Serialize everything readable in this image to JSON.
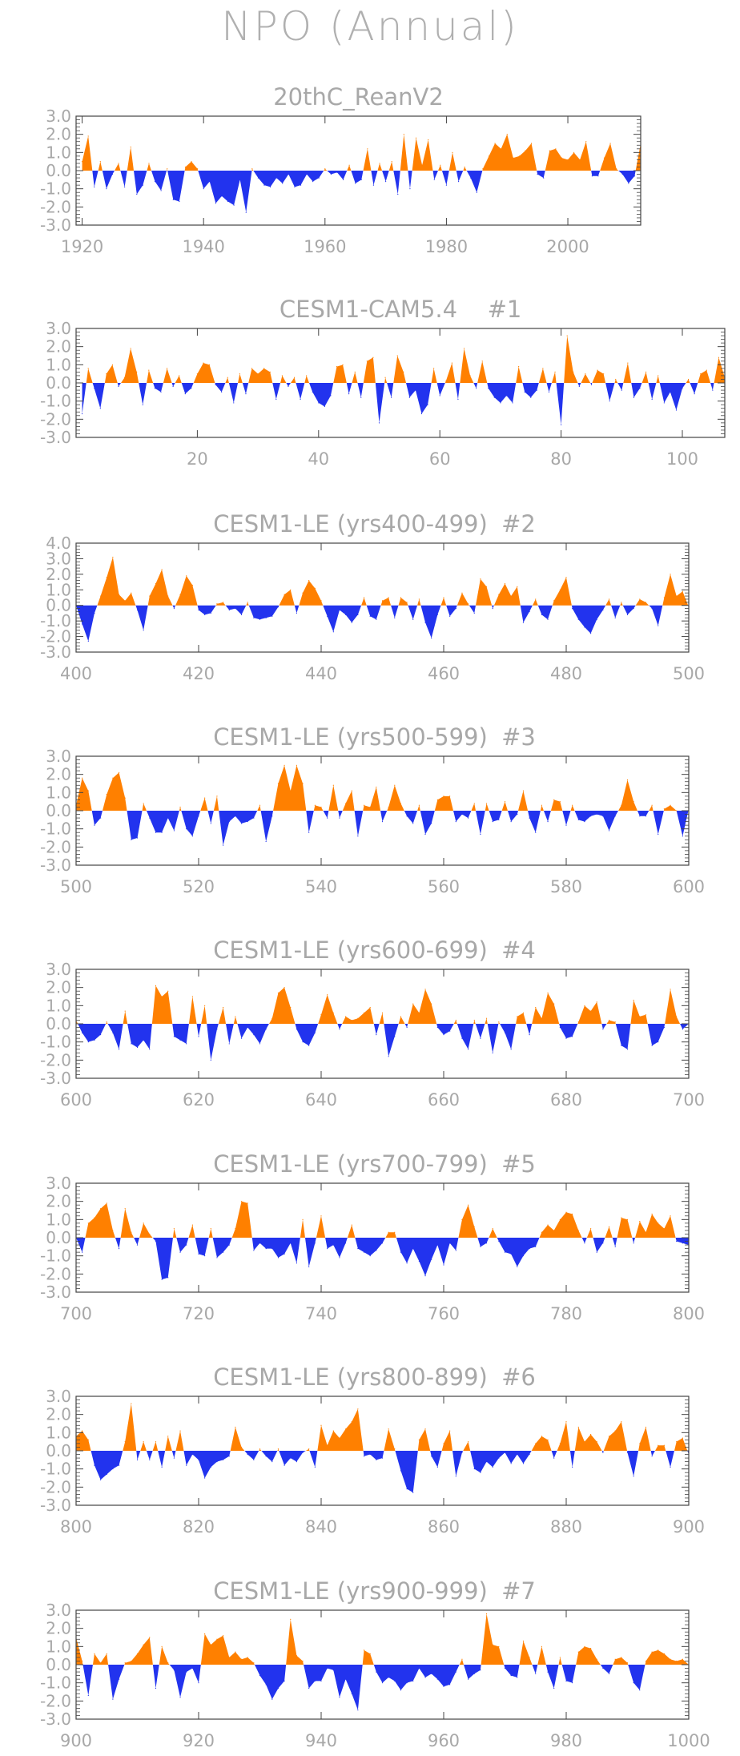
{
  "page": {
    "title": "NPO (Annual)"
  },
  "colors": {
    "positive": "#ff8000",
    "negative": "#2233ee",
    "axis": "#444444",
    "text": "#a8a8a8"
  },
  "chart_data": [
    {
      "type": "area",
      "title": "20thC_ReanV2",
      "label_suffix": "",
      "xlim": [
        1919,
        2012
      ],
      "ylim": [
        -3,
        3
      ],
      "yticks": [
        3.0,
        2.0,
        1.0,
        0.0,
        -1.0,
        -2.0,
        -3.0
      ],
      "ytick_labels": [
        "3.0",
        "2.0",
        "1.0",
        "0.0",
        "-1.0",
        "-2.0",
        "-3.0"
      ],
      "xticks": [
        1920,
        1940,
        1960,
        1980,
        2000
      ],
      "xtick_labels": [
        "1920",
        "1940",
        "1960",
        "1980",
        "2000"
      ],
      "x_start": 1920,
      "values": [
        0.5,
        1.9,
        -0.9,
        0.5,
        -1.0,
        -0.2,
        0.4,
        -0.9,
        1.3,
        -1.3,
        -0.8,
        0.4,
        -0.6,
        -1.1,
        0.1,
        -1.6,
        -1.7,
        0.2,
        0.5,
        0.1,
        -1.0,
        -0.6,
        -1.8,
        -1.4,
        -1.7,
        -1.9,
        -0.5,
        -2.3,
        0.1,
        -0.4,
        -0.8,
        -0.9,
        -0.4,
        -0.7,
        -0.2,
        -0.9,
        -0.8,
        -0.2,
        -0.6,
        -0.4,
        0.1,
        -0.2,
        -0.1,
        -0.5,
        0.3,
        -0.7,
        -0.5,
        1.2,
        -0.8,
        0.4,
        -0.6,
        0.5,
        -1.3,
        2.0,
        -1.0,
        1.8,
        0.3,
        1.7,
        -0.5,
        0.3,
        -0.8,
        1.0,
        -0.6,
        0.2,
        -0.4,
        -1.2,
        0.1,
        0.8,
        1.5,
        1.2,
        2.0,
        0.7,
        0.8,
        1.1,
        1.5,
        -0.2,
        -0.4,
        1.1,
        1.2,
        0.7,
        0.6,
        1.0,
        0.6,
        1.6,
        -0.3,
        -0.3,
        0.7,
        1.5,
        0.1,
        -0.2,
        -0.7,
        -0.3,
        1.5
      ]
    },
    {
      "type": "area",
      "title": "CESM1-CAM5.4",
      "label_suffix": "#1",
      "xlim": [
        0,
        107
      ],
      "ylim": [
        -3,
        3
      ],
      "yticks": [
        3.0,
        2.0,
        1.0,
        0.0,
        -1.0,
        -2.0,
        -3.0
      ],
      "ytick_labels": [
        "3.0",
        "2.0",
        "1.0",
        "0.0",
        "-1.0",
        "-2.0",
        "-3.0"
      ],
      "xticks": [
        20,
        40,
        60,
        80,
        100
      ],
      "xtick_labels": [
        "20",
        "40",
        "60",
        "80",
        "100"
      ],
      "x_start": 1,
      "values": [
        -1.7,
        0.8,
        -0.3,
        -1.4,
        0.5,
        1.0,
        -0.2,
        0.3,
        1.9,
        0.6,
        -1.2,
        0.7,
        -0.3,
        -0.5,
        0.8,
        -0.2,
        0.4,
        -0.6,
        -0.3,
        0.5,
        1.1,
        1.0,
        -0.1,
        -0.5,
        0.3,
        -1.1,
        0.5,
        -0.6,
        0.8,
        0.5,
        0.8,
        0.6,
        -0.9,
        0.4,
        -0.2,
        0.3,
        -0.9,
        0.4,
        -0.5,
        -1.1,
        -1.3,
        -0.7,
        0.9,
        1.0,
        -0.6,
        0.6,
        -0.8,
        1.2,
        1.4,
        -2.2,
        0.3,
        -0.8,
        1.5,
        0.6,
        -0.8,
        -0.4,
        -1.7,
        -1.2,
        0.8,
        -0.7,
        0.1,
        1.1,
        -0.9,
        1.9,
        0.4,
        -0.3,
        1.2,
        -0.3,
        -0.8,
        -1.1,
        -0.7,
        -1.1,
        0.9,
        -0.5,
        -0.8,
        -0.4,
        0.8,
        -0.5,
        0.6,
        -2.3,
        2.6,
        0.6,
        -0.2,
        0.5,
        -0.1,
        0.7,
        0.5,
        -1.0,
        0.2,
        -0.4,
        1.1,
        -0.8,
        -0.3,
        0.6,
        -0.9,
        0.4,
        -1.1,
        -0.5,
        -1.5,
        -0.3,
        0.2,
        -0.6,
        0.5,
        0.7,
        -0.4,
        1.4,
        0.3
      ]
    },
    {
      "type": "area",
      "title": "CESM1-LE (yrs400-499)",
      "label_suffix": "#2",
      "xlim": [
        400,
        500
      ],
      "ylim": [
        -3,
        4
      ],
      "yticks": [
        4.0,
        3.0,
        2.0,
        1.0,
        0.0,
        -1.0,
        -2.0,
        -3.0
      ],
      "ytick_labels": [
        "4.0",
        "3.0",
        "2.0",
        "1.0",
        "0.0",
        "-1.0",
        "-2.0",
        "-3.0"
      ],
      "xticks": [
        400,
        420,
        440,
        460,
        480,
        500
      ],
      "xtick_labels": [
        "400",
        "420",
        "440",
        "460",
        "480",
        "500"
      ],
      "x_start": 400,
      "values": [
        0.0,
        -1.2,
        -2.3,
        -0.5,
        0.6,
        1.8,
        3.1,
        0.7,
        0.3,
        0.8,
        -0.3,
        -1.6,
        0.6,
        1.4,
        2.3,
        0.6,
        -0.2,
        0.7,
        1.9,
        1.3,
        -0.3,
        -0.6,
        -0.5,
        0.1,
        0.2,
        -0.3,
        -0.2,
        -0.6,
        0.2,
        -0.8,
        -0.9,
        -0.8,
        -0.7,
        -0.1,
        0.7,
        1.0,
        -0.5,
        0.8,
        1.6,
        1.1,
        0.3,
        -0.7,
        -1.7,
        -0.3,
        -0.6,
        -1.1,
        -0.6,
        0.5,
        -0.7,
        -0.9,
        0.3,
        0.5,
        -0.8,
        0.5,
        0.2,
        -0.9,
        0.4,
        -1.1,
        -2.1,
        -0.6,
        0.5,
        -0.7,
        -0.2,
        0.8,
        0.1,
        -0.5,
        1.7,
        1.2,
        -0.2,
        0.7,
        1.4,
        0.6,
        1.2,
        -1.1,
        -0.4,
        0.4,
        -0.6,
        -0.9,
        0.3,
        1.0,
        1.8,
        -0.2,
        -0.9,
        -1.4,
        -1.8,
        -0.9,
        -0.3,
        0.4,
        -0.8,
        0.2,
        -0.6,
        -0.2,
        0.4,
        0.2,
        -0.2,
        -1.3,
        0.5,
        2.0,
        0.6,
        0.9,
        -0.1
      ]
    },
    {
      "type": "area",
      "title": "CESM1-LE (yrs500-599)",
      "label_suffix": "#3",
      "xlim": [
        500,
        600
      ],
      "ylim": [
        -3,
        3
      ],
      "yticks": [
        3.0,
        2.0,
        1.0,
        0.0,
        -1.0,
        -2.0,
        -3.0
      ],
      "ytick_labels": [
        "3.0",
        "2.0",
        "1.0",
        "0.0",
        "-1.0",
        "-2.0",
        "-3.0"
      ],
      "xticks": [
        500,
        520,
        540,
        560,
        580,
        600
      ],
      "xtick_labels": [
        "500",
        "520",
        "540",
        "560",
        "580",
        "600"
      ],
      "x_start": 500,
      "values": [
        0.3,
        1.8,
        1.1,
        -0.8,
        -0.4,
        0.9,
        1.8,
        2.1,
        0.7,
        -1.6,
        -1.5,
        0.4,
        -0.4,
        -1.2,
        -1.2,
        -0.4,
        -1.1,
        0.2,
        -1.0,
        -1.4,
        -0.3,
        0.7,
        -0.7,
        0.8,
        -1.9,
        -0.6,
        -0.3,
        -0.7,
        -0.6,
        -0.4,
        0.3,
        -1.7,
        -0.3,
        1.5,
        2.5,
        1.1,
        2.5,
        1.5,
        -1.2,
        0.3,
        0.2,
        -0.4,
        1.4,
        -0.4,
        0.4,
        1.1,
        -1.4,
        0.3,
        0.2,
        1.3,
        -0.6,
        0.2,
        1.4,
        0.4,
        -0.3,
        -0.7,
        0.3,
        -1.3,
        -0.7,
        0.6,
        0.8,
        0.8,
        -0.6,
        -0.2,
        -0.4,
        0.4,
        -1.3,
        0.4,
        -0.6,
        -0.5,
        0.5,
        -0.6,
        -0.2,
        1.1,
        -0.4,
        -1.2,
        0.3,
        -0.6,
        0.6,
        0.5,
        -0.8,
        0.3,
        -0.5,
        -0.6,
        -0.3,
        -0.2,
        -0.3,
        -1.1,
        -0.3,
        0.3,
        1.7,
        0.5,
        -0.3,
        -0.3,
        0.3,
        -1.3,
        0.1,
        0.3,
        0.0,
        -1.4,
        0.1
      ]
    },
    {
      "type": "area",
      "title": "CESM1-LE (yrs600-699)",
      "label_suffix": "#4",
      "xlim": [
        600,
        700
      ],
      "ylim": [
        -3,
        3
      ],
      "yticks": [
        3.0,
        2.0,
        1.0,
        0.0,
        -1.0,
        -2.0,
        -3.0
      ],
      "ytick_labels": [
        "3.0",
        "2.0",
        "1.0",
        "0.0",
        "-1.0",
        "-2.0",
        "-3.0"
      ],
      "xticks": [
        600,
        620,
        640,
        660,
        680,
        700
      ],
      "xtick_labels": [
        "600",
        "620",
        "640",
        "660",
        "680",
        "700"
      ],
      "x_start": 600,
      "values": [
        0.2,
        -0.5,
        -1.0,
        -0.9,
        -0.6,
        0.1,
        -0.5,
        -1.4,
        0.7,
        -1.1,
        -1.3,
        -0.9,
        -1.4,
        2.1,
        1.5,
        1.8,
        -0.7,
        -0.9,
        -1.1,
        1.5,
        -0.7,
        1.0,
        -2.0,
        -0.3,
        0.9,
        -1.1,
        0.4,
        -0.8,
        -0.2,
        -0.6,
        -1.1,
        -0.3,
        0.3,
        1.7,
        2.0,
        0.9,
        -0.3,
        -1.0,
        -1.2,
        -0.5,
        0.5,
        1.6,
        0.6,
        -0.3,
        0.4,
        0.2,
        0.3,
        0.6,
        0.9,
        -0.6,
        0.6,
        -1.8,
        -0.7,
        0.4,
        -0.2,
        1.1,
        0.6,
        1.9,
        1.1,
        -0.2,
        -0.6,
        -0.4,
        0.2,
        -0.8,
        -1.4,
        0.2,
        -0.8,
        0.3,
        -1.6,
        0.1,
        -0.5,
        -1.4,
        0.4,
        0.6,
        -0.6,
        0.9,
        0.3,
        1.7,
        1.1,
        -0.2,
        -0.8,
        -0.7,
        0.1,
        1.0,
        0.7,
        1.2,
        -0.3,
        0.2,
        0.1,
        -1.2,
        -1.4,
        1.3,
        0.4,
        0.5,
        -1.2,
        -1.0,
        -0.2,
        1.9,
        0.4,
        -0.3,
        0.0
      ]
    },
    {
      "type": "area",
      "title": "CESM1-LE (yrs700-799)",
      "label_suffix": "#5",
      "xlim": [
        700,
        800
      ],
      "ylim": [
        -3,
        3
      ],
      "yticks": [
        3.0,
        2.0,
        1.0,
        0.0,
        -1.0,
        -2.0,
        -3.0
      ],
      "ytick_labels": [
        "3.0",
        "2.0",
        "1.0",
        "0.0",
        "-1.0",
        "-2.0",
        "-3.0"
      ],
      "xticks": [
        700,
        720,
        740,
        760,
        780,
        800
      ],
      "xtick_labels": [
        "700",
        "720",
        "740",
        "760",
        "780",
        "800"
      ],
      "x_start": 700,
      "values": [
        0.0,
        -0.8,
        0.8,
        1.1,
        1.6,
        1.9,
        0.4,
        -0.6,
        1.6,
        0.3,
        -0.4,
        0.8,
        0.2,
        -0.2,
        -2.3,
        -2.2,
        0.5,
        -0.8,
        -0.4,
        0.7,
        -0.9,
        -1.0,
        0.5,
        -1.1,
        -0.8,
        -0.4,
        0.5,
        2.0,
        1.9,
        -0.7,
        -0.3,
        -0.6,
        -0.6,
        -1.1,
        -0.9,
        -0.3,
        -1.4,
        1.0,
        -1.6,
        -0.3,
        1.2,
        -0.6,
        -0.4,
        -1.1,
        -0.3,
        0.7,
        -0.6,
        -0.8,
        -1.0,
        -0.7,
        -0.3,
        0.3,
        0.3,
        -0.8,
        -1.4,
        -0.6,
        -1.3,
        -2.1,
        -1.2,
        -0.4,
        -1.5,
        -0.3,
        -0.7,
        1.0,
        1.8,
        0.6,
        -0.5,
        -0.3,
        0.5,
        -0.2,
        -0.8,
        -0.9,
        -1.6,
        -1.0,
        -0.6,
        -0.5,
        0.3,
        0.7,
        0.4,
        1.0,
        1.4,
        1.3,
        0.4,
        -0.3,
        0.5,
        -0.8,
        -0.3,
        0.6,
        -0.5,
        1.1,
        1.0,
        -0.3,
        0.9,
        0.3,
        1.3,
        0.8,
        0.5,
        1.2,
        -0.2,
        -0.3,
        -0.4
      ]
    },
    {
      "type": "area",
      "title": "CESM1-LE (yrs800-899)",
      "label_suffix": "#6",
      "xlim": [
        800,
        900
      ],
      "ylim": [
        -3,
        3
      ],
      "yticks": [
        3.0,
        2.0,
        1.0,
        0.0,
        -1.0,
        -2.0,
        -3.0
      ],
      "ytick_labels": [
        "3.0",
        "2.0",
        "1.0",
        "0.0",
        "-1.0",
        "-2.0",
        "-3.0"
      ],
      "xticks": [
        800,
        820,
        840,
        860,
        880,
        900
      ],
      "xtick_labels": [
        "800",
        "820",
        "840",
        "860",
        "880",
        "900"
      ],
      "x_start": 800,
      "values": [
        0.8,
        1.1,
        0.6,
        -0.8,
        -1.6,
        -1.3,
        -1.0,
        -0.8,
        0.5,
        2.6,
        -0.5,
        0.5,
        -0.5,
        0.5,
        -0.9,
        0.8,
        -0.4,
        1.1,
        -0.8,
        -0.2,
        -0.5,
        -1.5,
        -0.9,
        -0.6,
        -0.5,
        -0.3,
        1.3,
        0.2,
        -0.2,
        -0.5,
        0.1,
        -0.3,
        -0.6,
        0.1,
        -0.8,
        -0.4,
        -0.6,
        -0.1,
        0.1,
        -0.9,
        1.4,
        0.3,
        1.1,
        0.7,
        1.2,
        1.6,
        2.3,
        -0.3,
        -0.2,
        -0.5,
        -0.4,
        1.2,
        0.1,
        -1.1,
        -2.1,
        -2.3,
        0.6,
        1.2,
        -0.3,
        -0.9,
        0.4,
        1.1,
        -1.4,
        -0.1,
        0.5,
        -1.0,
        -1.2,
        -0.6,
        -0.9,
        -0.4,
        -0.1,
        -0.7,
        -0.2,
        -0.7,
        -0.2,
        0.4,
        0.8,
        0.6,
        -0.4,
        0.4,
        1.6,
        -0.9,
        1.3,
        0.5,
        0.9,
        0.5,
        -0.1,
        0.8,
        1.1,
        1.6,
        -0.1,
        -1.4,
        0.4,
        1.3,
        -0.3,
        0.3,
        0.3,
        -0.9,
        0.5,
        0.7,
        -0.2
      ]
    },
    {
      "type": "area",
      "title": "CESM1-LE (yrs900-999)",
      "label_suffix": "#7",
      "xlim": [
        900,
        1000
      ],
      "ylim": [
        -3,
        3
      ],
      "yticks": [
        3.0,
        2.0,
        1.0,
        0.0,
        -1.0,
        -2.0,
        -3.0
      ],
      "ytick_labels": [
        "3.0",
        "2.0",
        "1.0",
        "0.0",
        "-1.0",
        "-2.0",
        "-3.0"
      ],
      "xticks": [
        900,
        920,
        940,
        960,
        980,
        1000
      ],
      "xtick_labels": [
        "900",
        "920",
        "940",
        "960",
        "980",
        "1000"
      ],
      "x_start": 900,
      "values": [
        1.5,
        0.2,
        -1.7,
        0.6,
        0.1,
        0.6,
        -1.9,
        -0.8,
        0.1,
        0.2,
        0.6,
        1.1,
        1.5,
        -1.3,
        1.0,
        0.1,
        -0.3,
        -1.8,
        -0.4,
        -0.2,
        -1.0,
        1.7,
        1.1,
        1.4,
        1.6,
        0.4,
        0.7,
        0.3,
        0.4,
        0.1,
        -0.6,
        -1.1,
        -1.9,
        -1.3,
        -0.9,
        2.5,
        0.5,
        0.2,
        -1.3,
        -0.9,
        -0.9,
        -0.2,
        -0.3,
        -1.8,
        -0.8,
        -1.6,
        -2.5,
        0.8,
        0.6,
        -0.4,
        -1.0,
        -0.7,
        -0.9,
        -1.4,
        -1.0,
        -0.9,
        -0.2,
        -0.7,
        -0.5,
        -0.8,
        -1.2,
        -1.1,
        -0.4,
        0.3,
        -0.8,
        -0.5,
        -0.3,
        2.8,
        1.1,
        1.0,
        -0.2,
        -0.6,
        -0.7,
        1.3,
        0.4,
        -0.5,
        1.0,
        -0.4,
        -1.3,
        0.4,
        -0.9,
        -1.0,
        0.7,
        1.0,
        0.9,
        0.3,
        -0.2,
        -0.5,
        0.3,
        0.4,
        0.1,
        -1.0,
        -1.4,
        0.2,
        0.7,
        0.8,
        0.6,
        0.3,
        0.2,
        0.3,
        0.0
      ]
    }
  ]
}
